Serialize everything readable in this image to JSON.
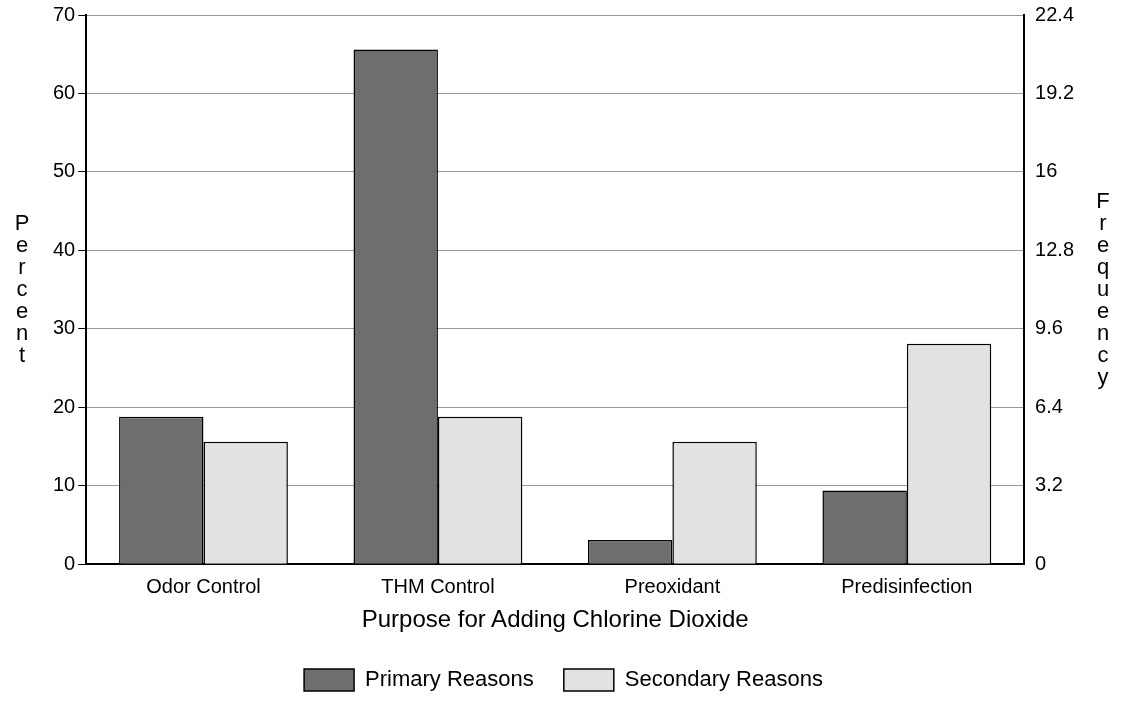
{
  "chart_data": {
    "type": "bar",
    "xlabel": "Purpose for Adding Chlorine Dioxide",
    "ylabel": "Percent",
    "y2label": "Frequency",
    "categories": [
      "Odor Control",
      "THM Control",
      "Preoxidant",
      "Predisinfection"
    ],
    "series": [
      {
        "name": "Primary Reasons",
        "color": "#6e6e6e",
        "values": [
          18.8,
          65.6,
          3.1,
          9.4
        ]
      },
      {
        "name": "Secondary Reasons",
        "color": "#e2e2e2",
        "values": [
          15.6,
          18.8,
          15.6,
          28.1
        ]
      }
    ],
    "ylim": [
      0,
      70
    ],
    "yticks": [
      0,
      10,
      20,
      30,
      40,
      50,
      60,
      70
    ],
    "y2lim": [
      0,
      22.4
    ],
    "y2ticks": [
      0,
      3.2,
      6.4,
      9.6,
      12.8,
      16,
      19.2,
      22.4
    ],
    "grid": "y",
    "legend": "bottom"
  }
}
